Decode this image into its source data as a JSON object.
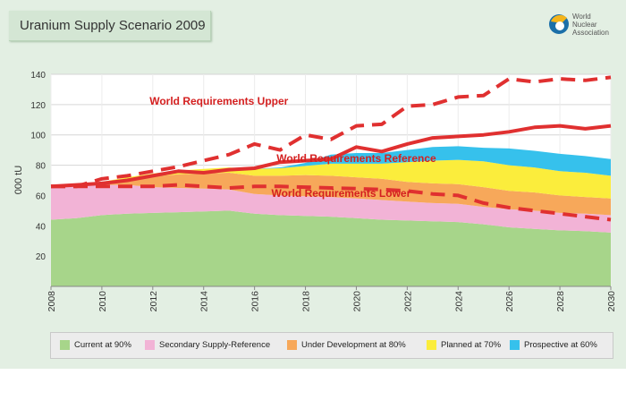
{
  "page": {
    "title": "Uranium Supply Scenario 2009"
  },
  "logo": {
    "line1": "World",
    "line2": "Nuclear",
    "line3": "Association"
  },
  "chart_data": {
    "type": "area",
    "title": "Uranium Supply Scenario 2009",
    "xlabel": "",
    "ylabel": "000 tU",
    "xlim": [
      2008,
      2030
    ],
    "ylim": [
      0,
      140
    ],
    "x_ticks": [
      "2008",
      "2010",
      "2012",
      "2014",
      "2016",
      "2018",
      "2020",
      "2022",
      "2024",
      "2026",
      "2028",
      "2030"
    ],
    "y_ticks": [
      "20",
      "40",
      "60",
      "80",
      "100",
      "120",
      "140"
    ],
    "x": [
      2008,
      2009,
      2010,
      2011,
      2012,
      2013,
      2014,
      2015,
      2016,
      2017,
      2018,
      2019,
      2020,
      2021,
      2022,
      2023,
      2024,
      2025,
      2026,
      2027,
      2028,
      2029,
      2030
    ],
    "stacked_series": [
      {
        "name": "Current at 90%",
        "color": "#a7d58a",
        "values": [
          44,
          45,
          47,
          48,
          48.5,
          49,
          49.5,
          50,
          48,
          47,
          46.5,
          46,
          45,
          44,
          43.5,
          43,
          42.5,
          41,
          39,
          38,
          37,
          36.5,
          35.5
        ]
      },
      {
        "name": "Secondary Supply-Reference",
        "color": "#f2b3d6",
        "values": [
          21,
          21,
          20,
          19,
          17,
          16,
          15,
          14,
          13,
          13,
          13,
          13,
          13,
          13,
          12.5,
          12,
          12,
          11.5,
          12,
          12,
          11.5,
          11.5,
          11.5
        ]
      },
      {
        "name": "Under Development at 80%",
        "color": "#f7a85a",
        "values": [
          0,
          0,
          2,
          4,
          7,
          9,
          10,
          11,
          12,
          13,
          14,
          14,
          14,
          14,
          13,
          13,
          13,
          13,
          12,
          12,
          11.5,
          11,
          11
        ]
      },
      {
        "name": "Planned at 70%",
        "color": "#fbed3c",
        "values": [
          0,
          0,
          0,
          1,
          2,
          2.5,
          3,
          3.5,
          4.5,
          5,
          6,
          8,
          9,
          10,
          13,
          15,
          16,
          17,
          17,
          16.5,
          16,
          16,
          15
        ]
      },
      {
        "name": "Prospective at 60%",
        "color": "#36c1ec",
        "values": [
          0,
          0,
          0,
          0,
          0,
          0,
          0,
          0,
          0,
          0.5,
          2,
          6,
          7,
          7,
          8,
          9,
          9,
          9,
          11,
          11,
          11.5,
          11,
          11
        ]
      }
    ],
    "lines": [
      {
        "name": "World Requirements Upper",
        "style": "dashed",
        "color": "#e03030",
        "values": [
          66,
          66,
          71,
          73,
          76,
          79,
          83,
          87,
          94,
          90,
          100,
          97,
          106,
          107,
          119,
          120,
          125,
          126,
          137,
          135,
          137,
          136,
          138
        ]
      },
      {
        "name": "World Requirements Reference",
        "style": "solid",
        "color": "#e03030",
        "values": [
          66,
          67,
          68,
          70,
          73,
          76,
          75,
          77,
          78,
          82,
          83,
          84,
          92,
          89,
          94,
          98,
          99,
          100,
          102,
          105,
          106,
          104,
          106
        ]
      },
      {
        "name": "World Requirements Lower",
        "style": "dashed",
        "color": "#e03030",
        "values": [
          66,
          66,
          66,
          66,
          66,
          67,
          66,
          65,
          66,
          66,
          65.5,
          65,
          64.5,
          64,
          63,
          61,
          60,
          55,
          52,
          50,
          48,
          46,
          44
        ]
      }
    ],
    "annotations": [
      {
        "text": "World Requirements Upper",
        "x": 2014.6,
        "y": 120
      },
      {
        "text": "World Requirements Reference",
        "x": 2020.0,
        "y": 82
      },
      {
        "text": "World Requirements Lower",
        "x": 2019.4,
        "y": 59
      }
    ],
    "legend": [
      {
        "label": "Current at 90%",
        "color": "#a7d58a"
      },
      {
        "label": "Secondary Supply-Reference",
        "color": "#f2b3d6"
      },
      {
        "label": "Under Development at 80%",
        "color": "#f7a85a"
      },
      {
        "label": "Planned at 70%",
        "color": "#fbed3c"
      },
      {
        "label": "Prospective at 60%",
        "color": "#36c1ec"
      }
    ],
    "legend_position": "bottom",
    "grid": true
  }
}
